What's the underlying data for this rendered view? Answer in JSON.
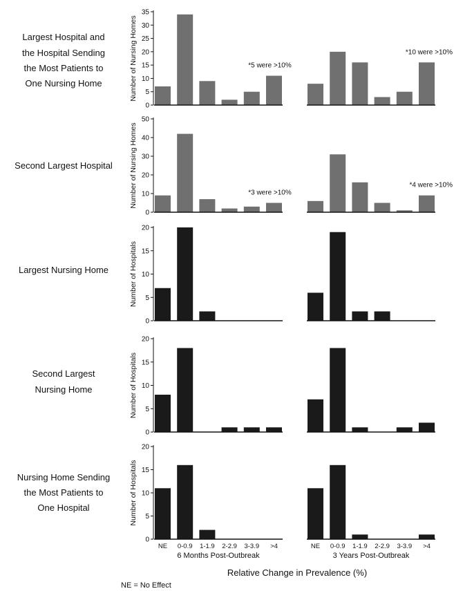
{
  "xlabel": "Relative Change in Prevalence (%)",
  "footnote": "NE = No Effect",
  "group_labels": [
    "6 Months Post-Outbreak",
    "3 Years Post-Outbreak"
  ],
  "categories": [
    "NE",
    "0-0.9",
    "1-1.9",
    "2-2.9",
    "3-3.9",
    ">4"
  ],
  "chart_data": [
    {
      "type": "bar",
      "row_label": [
        "Largest Hospital and",
        "the Hospital Sending",
        "the Most Patients to",
        "One Nursing Home"
      ],
      "ylabel": "Number of Nursing Homes",
      "ylim": [
        0,
        35
      ],
      "yticks": [
        0,
        5,
        10,
        15,
        20,
        25,
        30,
        35
      ],
      "color": "#707070",
      "categories": [
        "NE",
        "0-0.9",
        "1-1.9",
        "2-2.9",
        "3-3.9",
        ">4"
      ],
      "series": [
        {
          "values": [
            7,
            34,
            9,
            2,
            5,
            11
          ]
        },
        {
          "values": [
            8,
            20,
            16,
            3,
            5,
            16
          ]
        }
      ],
      "annotations": [
        {
          "text": "*5 were >10%",
          "group": 0,
          "category": ">4"
        },
        {
          "text": "*10 were >10%",
          "group": 1,
          "category": ">4"
        }
      ]
    },
    {
      "type": "bar",
      "row_label": [
        "Second Largest Hospital"
      ],
      "ylabel": "Number of Nursing Homes",
      "ylim": [
        0,
        50
      ],
      "yticks": [
        0,
        10,
        20,
        30,
        40,
        50
      ],
      "color": "#707070",
      "categories": [
        "NE",
        "0-0.9",
        "1-1.9",
        "2-2.9",
        "3-3.9",
        ">4"
      ],
      "series": [
        {
          "values": [
            9,
            42,
            7,
            2,
            3,
            5
          ]
        },
        {
          "values": [
            6,
            31,
            16,
            5,
            1,
            9
          ]
        }
      ],
      "annotations": [
        {
          "text": "*3 were >10%",
          "group": 0,
          "category": ">4"
        },
        {
          "text": "*4 were >10%",
          "group": 1,
          "category": ">4"
        }
      ]
    },
    {
      "type": "bar",
      "row_label": [
        "Largest Nursing Home"
      ],
      "ylabel": "Number of Hospitals",
      "ylim": [
        0,
        20
      ],
      "yticks": [
        0,
        5,
        10,
        15,
        20
      ],
      "color": "#1a1a1a",
      "categories": [
        "NE",
        "0-0.9",
        "1-1.9",
        "2-2.9",
        "3-3.9",
        ">4"
      ],
      "series": [
        {
          "values": [
            7,
            20,
            2,
            0,
            0,
            0
          ]
        },
        {
          "values": [
            6,
            19,
            2,
            2,
            0,
            0
          ]
        }
      ],
      "annotations": []
    },
    {
      "type": "bar",
      "row_label": [
        "Second Largest",
        "Nursing Home"
      ],
      "ylabel": "Number of Hospitals",
      "ylim": [
        0,
        20
      ],
      "yticks": [
        0,
        5,
        10,
        15,
        20
      ],
      "color": "#1a1a1a",
      "categories": [
        "NE",
        "0-0.9",
        "1-1.9",
        "2-2.9",
        "3-3.9",
        ">4"
      ],
      "series": [
        {
          "values": [
            8,
            18,
            0,
            1,
            1,
            1
          ]
        },
        {
          "values": [
            7,
            18,
            1,
            0,
            1,
            2
          ]
        }
      ],
      "annotations": []
    },
    {
      "type": "bar",
      "row_label": [
        "Nursing Home Sending",
        "the Most Patients to",
        "One Hospital"
      ],
      "ylabel": "Number of Hospitals",
      "ylim": [
        0,
        20
      ],
      "yticks": [
        0,
        5,
        10,
        15,
        20
      ],
      "color": "#1a1a1a",
      "categories": [
        "NE",
        "0-0.9",
        "1-1.9",
        "2-2.9",
        "3-3.9",
        ">4"
      ],
      "series": [
        {
          "values": [
            11,
            16,
            2,
            0,
            0,
            0
          ]
        },
        {
          "values": [
            11,
            16,
            1,
            0,
            0,
            1
          ]
        }
      ],
      "annotations": []
    }
  ]
}
